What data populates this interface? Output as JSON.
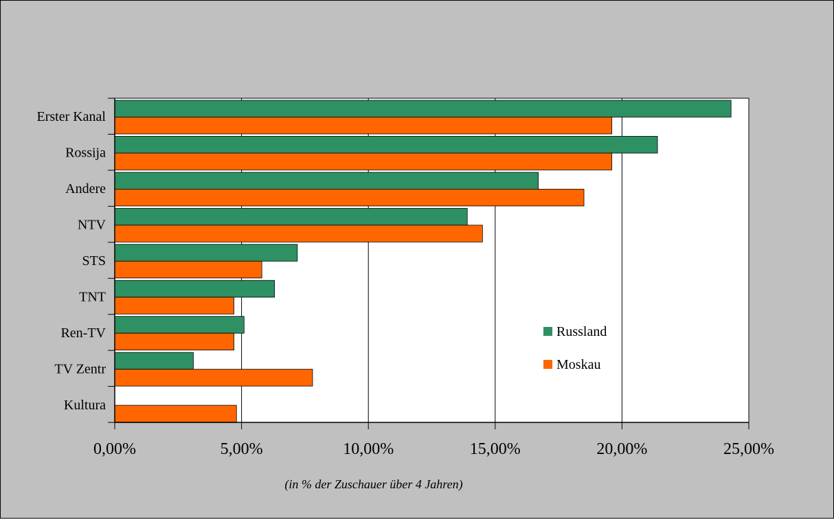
{
  "chart_data": {
    "type": "bar",
    "orientation": "horizontal",
    "categories": [
      "Erster Kanal",
      "Rossija",
      "Andere",
      "NTV",
      "STS",
      "TNT",
      "Ren-TV",
      "TV Zentr",
      "Kultura"
    ],
    "series": [
      {
        "name": "Russland",
        "color": "#2E9163",
        "values": [
          24.3,
          21.4,
          16.7,
          13.9,
          7.2,
          6.3,
          5.1,
          3.1,
          0.0
        ]
      },
      {
        "name": "Moskau",
        "color": "#FF6600",
        "values": [
          19.6,
          19.6,
          18.5,
          14.5,
          5.8,
          4.7,
          4.7,
          7.8,
          4.8
        ]
      }
    ],
    "xlim": [
      0,
      25
    ],
    "ticks": [
      0,
      5,
      10,
      15,
      20,
      25
    ],
    "tick_labels": [
      "0,00%",
      "5,00%",
      "10,00%",
      "15,00%",
      "20,00%",
      "25,00%"
    ],
    "xlabel": "(in % der Zuschauer über 4 Jahren)",
    "grid": "vertical",
    "legend": "inside-right"
  },
  "colors": {
    "background": "#C0C0C0",
    "plot_area": "#FFFFFF"
  }
}
